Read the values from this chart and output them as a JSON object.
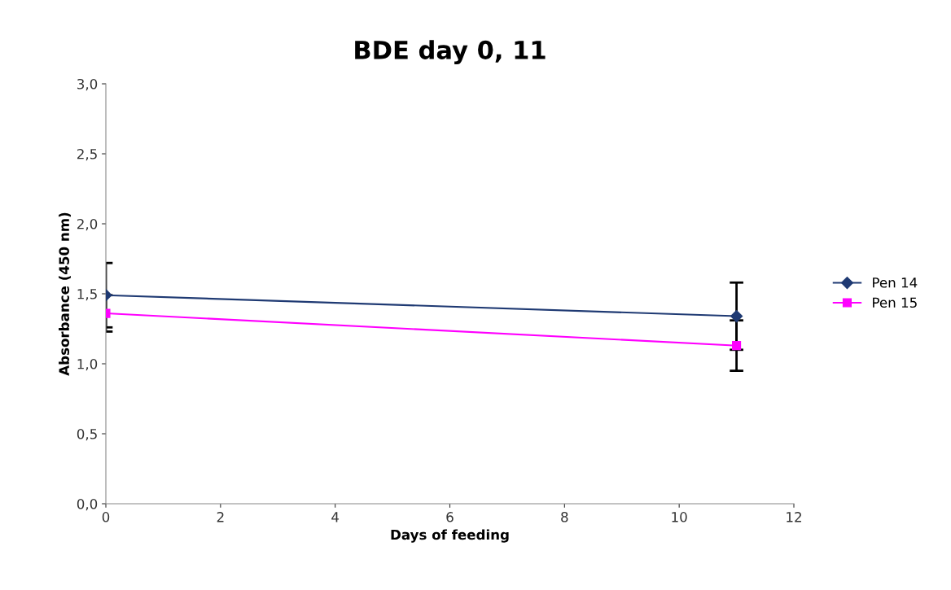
{
  "chart_data": {
    "type": "line",
    "title": "BDE day 0, 11",
    "xlabel": "Days of feeding",
    "ylabel": "Absorbance (450 nm)",
    "x": [
      0,
      11
    ],
    "series": [
      {
        "name": "Pen 14",
        "color": "#1f3a73",
        "marker": "diamond",
        "values": [
          1.49,
          1.34
        ],
        "errors": [
          0.23,
          0.24
        ]
      },
      {
        "name": "Pen 15",
        "color": "#ff00ff",
        "marker": "square",
        "values": [
          1.36,
          1.13
        ],
        "errors": [
          0.13,
          0.18
        ]
      }
    ],
    "xlim": [
      0,
      12
    ],
    "xticks": [
      0,
      2,
      4,
      6,
      8,
      10,
      12
    ],
    "ylim": [
      0,
      3
    ],
    "yticks": [
      {
        "value": 0,
        "label": "0,0"
      },
      {
        "value": 0.5,
        "label": "0,5"
      },
      {
        "value": 1,
        "label": "1,0"
      },
      {
        "value": 1.5,
        "label": "1,5"
      },
      {
        "value": 2,
        "label": "2,0"
      },
      {
        "value": 2.5,
        "label": "2,5"
      },
      {
        "value": 3,
        "label": "3,0"
      }
    ],
    "grid": false,
    "legend": "right"
  }
}
